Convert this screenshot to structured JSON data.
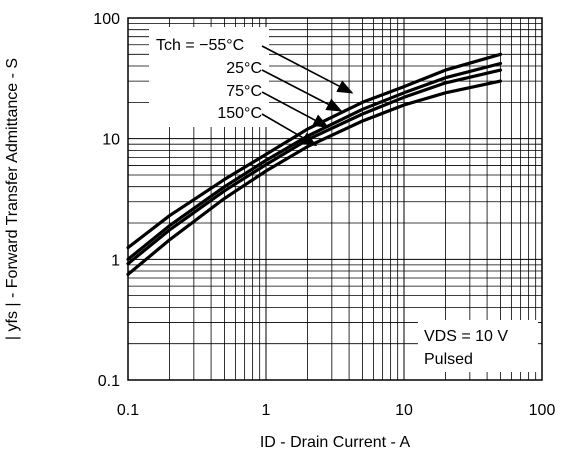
{
  "chart_data": {
    "type": "line",
    "title": "",
    "xlabel": "ID - Drain Current - A",
    "ylabel": "| yfs | - Forward Transfer Admittance - S",
    "xscale": "log",
    "yscale": "log",
    "xlim": [
      0.1,
      100
    ],
    "ylim": [
      0.1,
      100
    ],
    "grid": true,
    "x_ticks": [
      "0.1",
      "1",
      "10",
      "100"
    ],
    "y_ticks": [
      "0.1",
      "1",
      "10",
      "100"
    ],
    "series": [
      {
        "name": "Tch = −55°C",
        "x": [
          0.1,
          0.2,
          0.5,
          1,
          2,
          5,
          10,
          20,
          50
        ],
        "y": [
          1.25,
          2.3,
          4.6,
          7.4,
          12,
          20,
          27,
          37,
          50
        ]
      },
      {
        "name": "25°C",
        "x": [
          0.1,
          0.2,
          0.5,
          1,
          2,
          5,
          10,
          20,
          50
        ],
        "y": [
          1.0,
          1.9,
          4.0,
          6.6,
          10.5,
          17.5,
          24,
          32,
          42
        ]
      },
      {
        "name": "75°C",
        "x": [
          0.1,
          0.2,
          0.5,
          1,
          2,
          5,
          10,
          20,
          50
        ],
        "y": [
          0.92,
          1.75,
          3.7,
          6.1,
          9.8,
          16,
          22,
          29,
          37
        ]
      },
      {
        "name": "150°C",
        "x": [
          0.1,
          0.2,
          0.5,
          1,
          2,
          5,
          10,
          20,
          50
        ],
        "y": [
          0.75,
          1.45,
          3.2,
          5.4,
          8.6,
          14,
          19,
          24,
          30
        ]
      }
    ],
    "legend": {
      "title_prefix": "Tch = ",
      "title_value": "−55°C",
      "items": [
        "25°C",
        "75°C",
        "150°C"
      ]
    },
    "annotation": {
      "line1": "VDS = 10 V",
      "line2": "Pulsed"
    }
  }
}
